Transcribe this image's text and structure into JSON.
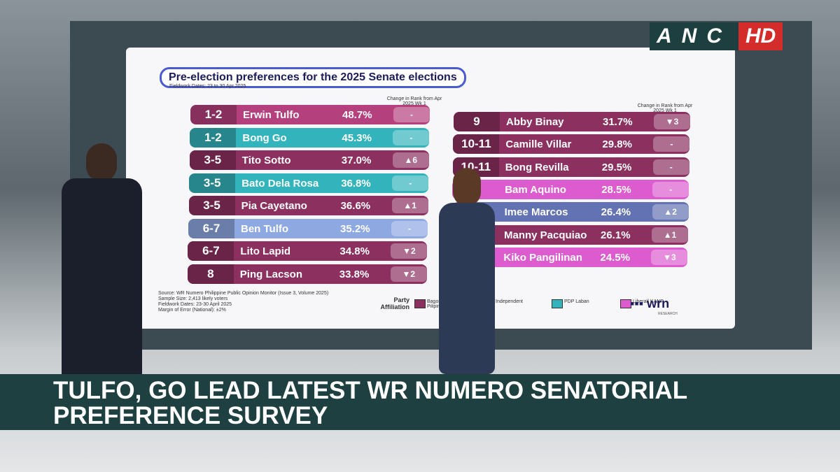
{
  "broadcast": {
    "logo": "ANC",
    "logo_hd": "HD",
    "headline": "TULFO, GO LEAD LATEST WR NUMERO SENATORIAL PREFERENCE SURVEY"
  },
  "screen": {
    "title": "Pre-election preferences for the 2025 Senate elections",
    "fieldwork": "Fieldwork Dates: 23 to 30 Apr 2025",
    "change_header": "Change in Rank from Apr 2025 Wk 1",
    "left": {
      "rows": [
        {
          "rank": "1-2",
          "name": "Erwin Tulfo",
          "pct": "48.7%",
          "change": "-",
          "color": "#b5407e"
        },
        {
          "rank": "1-2",
          "name": "Bong Go",
          "pct": "45.3%",
          "change": "-",
          "color": "#33b3bb"
        },
        {
          "rank": "3-5",
          "name": "Tito Sotto",
          "pct": "37.0%",
          "change": "▲6",
          "color": "#8c3060"
        },
        {
          "rank": "3-5",
          "name": "Bato Dela Rosa",
          "pct": "36.8%",
          "change": "-",
          "color": "#33b3bb"
        },
        {
          "rank": "3-5",
          "name": "Pia Cayetano",
          "pct": "36.6%",
          "change": "▲1",
          "color": "#8c3060"
        },
        {
          "rank": "6-7",
          "name": "Ben Tulfo",
          "pct": "35.2%",
          "change": "-",
          "color": "#8ea8e2"
        },
        {
          "rank": "6-7",
          "name": "Lito Lapid",
          "pct": "34.8%",
          "change": "▼2",
          "color": "#8c3060"
        },
        {
          "rank": "8",
          "name": "Ping Lacson",
          "pct": "33.8%",
          "change": "▼2",
          "color": "#8c3060"
        }
      ]
    },
    "right": {
      "rows": [
        {
          "rank": "9",
          "name": "Abby Binay",
          "pct": "31.7%",
          "change": "▼3",
          "color": "#8c3060"
        },
        {
          "rank": "10-11",
          "name": "Camille Villar",
          "pct": "29.8%",
          "change": "-",
          "color": "#8c3060"
        },
        {
          "rank": "10-11",
          "name": "Bong Revilla",
          "pct": "29.5%",
          "change": "-",
          "color": "#8c3060"
        },
        {
          "name": "Bam Aquino",
          "pct": "28.5%",
          "change": "-",
          "color": "#dc5ccf"
        },
        {
          "name": "Imee Marcos",
          "pct": "26.4%",
          "change": "▲2",
          "color": "#6272b2"
        },
        {
          "name": "Manny Pacquiao",
          "pct": "26.1%",
          "change": "▲1",
          "color": "#8c3060"
        },
        {
          "name": "Kiko Pangilinan",
          "pct": "24.5%",
          "change": "▼3",
          "color": "#dc5ccf"
        }
      ]
    },
    "source": [
      "Source: WR Numero Philippine Public Opinion Monitor (Issue 3, Volume 2025)",
      "Sample Size: 2,413 likely voters",
      "Fieldwork Dates: 23-30 April 2025",
      "Margin of Error (National): ±2%"
    ],
    "legend": {
      "title": "Party Affiliation",
      "items": [
        {
          "label": "Bagong Pilipinas",
          "color": "#8c3060"
        },
        {
          "label": "Independent",
          "color": "#8ea8e2"
        },
        {
          "label": "PDP Laban",
          "color": "#33b3bb"
        },
        {
          "label": "Liberal/ KANP",
          "color": "#dc5ccf"
        }
      ]
    },
    "brand": "wrn",
    "brand_sub": "RESEARCH"
  }
}
